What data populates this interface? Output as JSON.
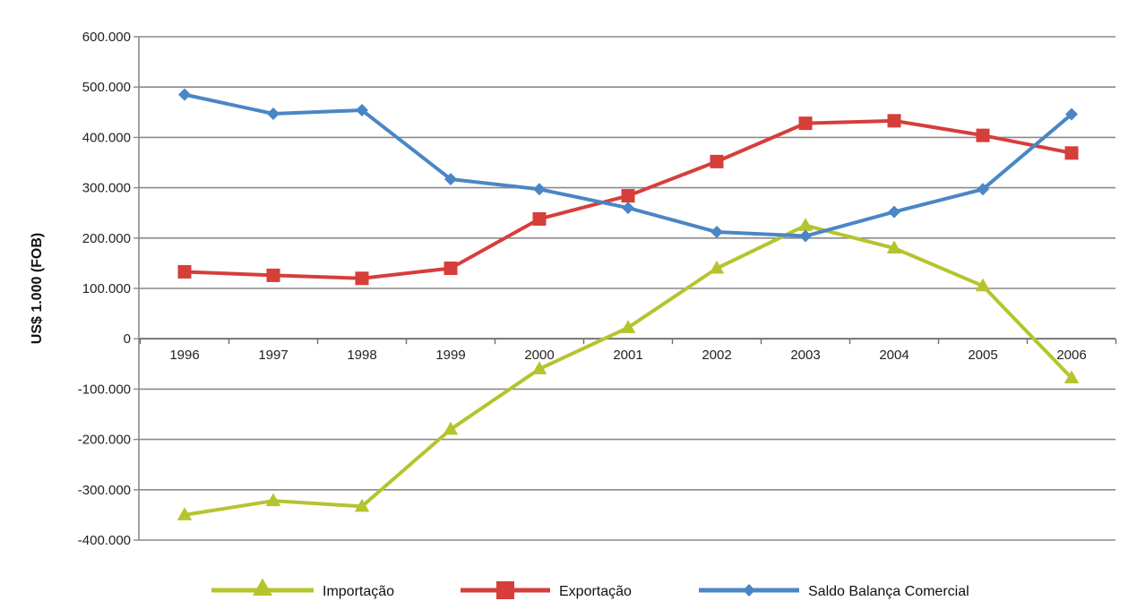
{
  "chart_data": {
    "type": "line",
    "title": "",
    "xlabel": "",
    "ylabel": "US$ 1.000 (FOB)",
    "categories": [
      "1996",
      "1997",
      "1998",
      "1999",
      "2000",
      "2001",
      "2002",
      "2003",
      "2004",
      "2005",
      "2006"
    ],
    "yticks": [
      "600.000",
      "500.000",
      "400.000",
      "300.000",
      "200.000",
      "100.000",
      "0",
      "-100.000",
      "-200.000",
      "-300.000",
      "-400.000"
    ],
    "ylim": [
      -400000,
      600000
    ],
    "ytick_step": 100000,
    "grid": true,
    "legend_position": "bottom",
    "series": [
      {
        "name": "Importação",
        "color": "#b5c42d",
        "marker": "triangle",
        "values": [
          -350000,
          -322000,
          -333000,
          -180000,
          -60000,
          22000,
          140000,
          225000,
          180000,
          105000,
          -78000
        ]
      },
      {
        "name": "Exportação",
        "color": "#d63e3a",
        "marker": "square",
        "values": [
          133000,
          126000,
          120000,
          140000,
          238000,
          284000,
          352000,
          428000,
          433000,
          404000,
          369000
        ]
      },
      {
        "name": "Saldo Balança Comercial",
        "color": "#4a86c5",
        "marker": "diamond",
        "values": [
          485000,
          447000,
          454000,
          317000,
          297000,
          260000,
          212000,
          204000,
          252000,
          297000,
          446000
        ]
      }
    ]
  }
}
